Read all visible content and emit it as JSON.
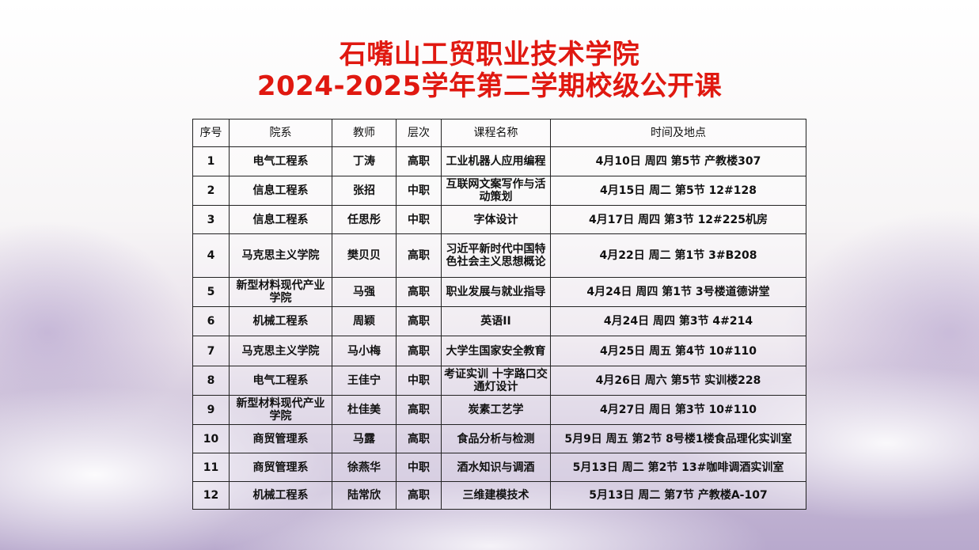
{
  "title_line1": "石嘴山工贸职业技术学院",
  "title_line2": "2024-2025学年第二学期校级公开课",
  "table": {
    "headers": [
      "序号",
      "院系",
      "教师",
      "层次",
      "课程名称",
      "时间及地点"
    ],
    "rows": [
      [
        "1",
        "电气工程系",
        "丁涛",
        "高职",
        "工业机器人应用编程",
        "4月10日 周四 第5节 产教楼307"
      ],
      [
        "2",
        "信息工程系",
        "张招",
        "中职",
        "互联网文案写作与活动策划",
        "4月15日 周二  第5节 12#128"
      ],
      [
        "3",
        "信息工程系",
        "任思彤",
        "中职",
        "字体设计",
        "4月17日 周四  第3节 12#225机房"
      ],
      [
        "4",
        "马克思主义学院",
        "樊贝贝",
        "高职",
        "习近平新时代中国特色社会主义思想概论",
        "4月22日 周二 第1节 3#B208"
      ],
      [
        "5",
        "新型材料现代产业学院",
        "马强",
        "高职",
        "职业发展与就业指导",
        "4月24日 周四  第1节 3号楼道德讲堂"
      ],
      [
        "6",
        "机械工程系",
        "周颖",
        "高职",
        "英语II",
        "4月24日 周四 第3节 4#214"
      ],
      [
        "7",
        "马克思主义学院",
        "马小梅",
        "高职",
        "大学生国家安全教育",
        "4月25日 周五 第4节 10#110"
      ],
      [
        "8",
        "电气工程系",
        "王佳宁",
        "中职",
        "考证实训 十字路口交通灯设计",
        "4月26日 周六 第5节 实训楼228"
      ],
      [
        "9",
        "新型材料现代产业学院",
        "杜佳美",
        "高职",
        "炭素工艺学",
        "4月27日 周日 第3节 10#110"
      ],
      [
        "10",
        "商贸管理系",
        "马露",
        "高职",
        "食品分析与检测",
        "5月9日 周五 第2节 8号楼1楼食品理化实训室"
      ],
      [
        "11",
        "商贸管理系",
        "徐燕华",
        "中职",
        "酒水知识与调酒",
        "5月13日 周二 第2节 13#咖啡调酒实训室"
      ],
      [
        "12",
        "机械工程系",
        "陆常欣",
        "高职",
        "三维建模技术",
        "5月13日 周二 第7节 产教楼A-107"
      ]
    ]
  }
}
